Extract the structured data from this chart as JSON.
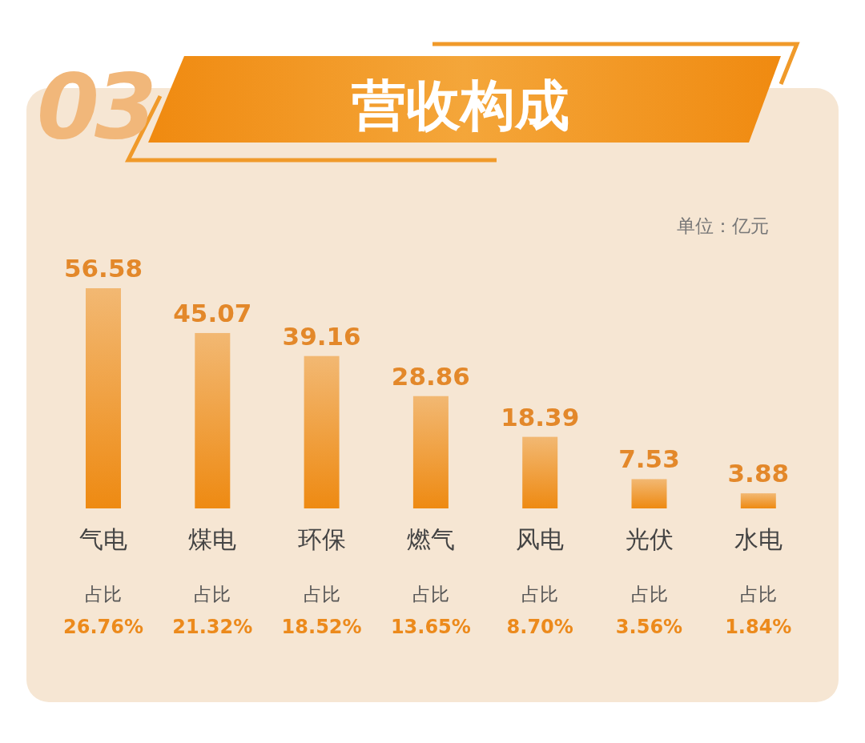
{
  "chart_data": {
    "type": "bar",
    "title": "营收构成",
    "subtitle": "单位：亿元",
    "categories": [
      "气电",
      "煤电",
      "环保",
      "燃气",
      "风电",
      "光伏",
      "水电"
    ],
    "values": [
      56.58,
      45.07,
      39.16,
      28.86,
      18.39,
      7.53,
      3.88
    ],
    "color": "#ee8a12",
    "data_labels": true,
    "annotations": [
      "03",
      "占比",
      "26.76%",
      "占比",
      "21.32%",
      "占比",
      "18.52%",
      "占比",
      "13.65%",
      "占比",
      "8.70%",
      "占比",
      "3.56%",
      "占比",
      "1.84%"
    ]
  }
}
